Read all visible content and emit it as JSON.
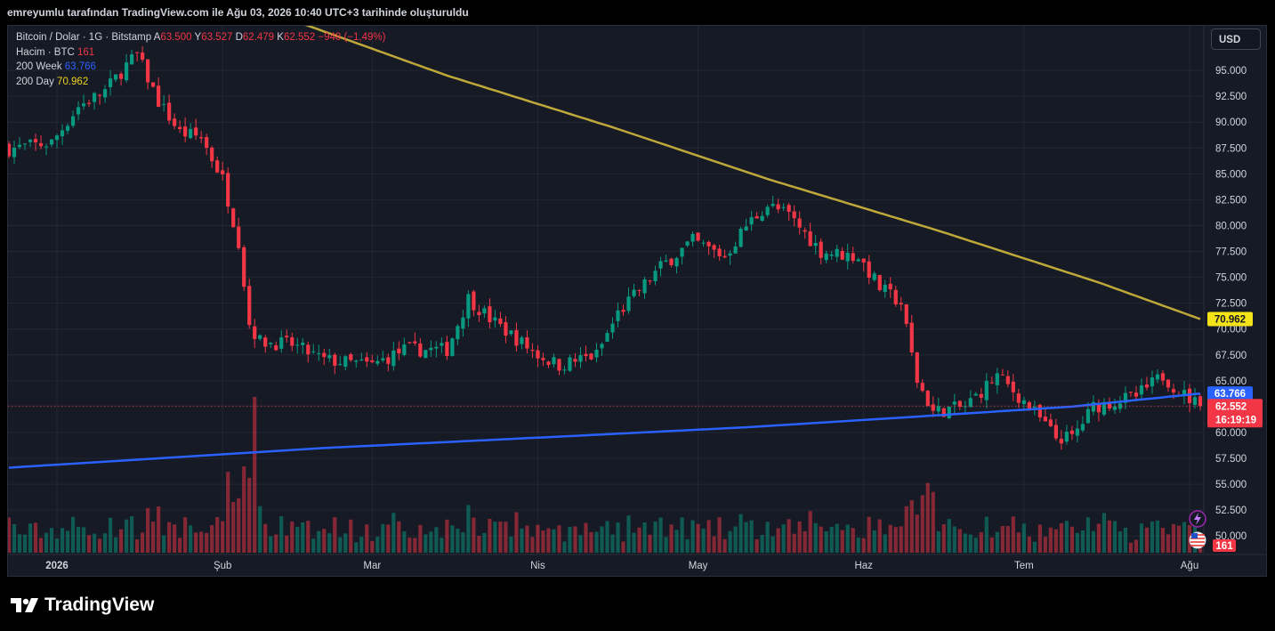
{
  "header": {
    "text": "emreyumlu tarafından TradingView.com ile Ağu 03, 2026 10:40 UTC+3 tarihinde oluşturuldu"
  },
  "legend": {
    "symbol": "Bitcoin / Dolar · 1G · Bitstamp",
    "o_label": "A",
    "o_value": "63.500",
    "h_label": "Y",
    "h_value": "63.527",
    "l_label": "D",
    "l_value": "62.479",
    "c_label": "K",
    "c_value": "62.552",
    "change": "−948 (−1,49%)",
    "volume_label": "Hacim · BTC",
    "volume_value": "161",
    "ma200w_label": "200 Week",
    "ma200w_value": "63.766",
    "ma200d_label": "200 Day",
    "ma200d_value": "70.962"
  },
  "currency_button": {
    "label": "USD"
  },
  "branding": {
    "logo_text": "TradingView"
  },
  "colors": {
    "up": "#089981",
    "down": "#f23645",
    "ma200w": "#2962ff",
    "ma200d": "#bfa83a",
    "background": "#161a25",
    "grid": "#232733"
  },
  "chart_data": {
    "type": "candlestick",
    "symbol": "Bitcoin / Dolar",
    "interval": "1G",
    "exchange": "Bitstamp",
    "x_tick_labels": [
      "2026",
      "Şub",
      "Mar",
      "Nis",
      "May",
      "Haz",
      "Tem",
      "Ağu"
    ],
    "y_tick_labels": [
      "95.000",
      "92.500",
      "90.000",
      "87.500",
      "85.000",
      "82.500",
      "80.000",
      "77.500",
      "75.000",
      "72.500",
      "70.000",
      "67.500",
      "65.000",
      "62.500",
      "60.000",
      "57.500",
      "55.000",
      "52.500",
      "50.000"
    ],
    "ylim": [
      49500,
      97500
    ],
    "price_markers": {
      "ma200d": "70.962",
      "ma200w": "63.766",
      "last": "62.552",
      "countdown": "16:19:19",
      "volume": "161"
    },
    "last_price": 62552,
    "dates_start": "2025-12-23",
    "dates_end": "2026-08-03",
    "series_daily_close_waypoints": [
      {
        "date": "2025-12-23",
        "price": 87400
      },
      {
        "date": "2025-12-31",
        "price": 88000
      },
      {
        "date": "2026-01-05",
        "price": 91500
      },
      {
        "date": "2026-01-10",
        "price": 93000
      },
      {
        "date": "2026-01-14",
        "price": 95500
      },
      {
        "date": "2026-01-16",
        "price": 96500
      },
      {
        "date": "2026-01-20",
        "price": 92000
      },
      {
        "date": "2026-01-24",
        "price": 89000
      },
      {
        "date": "2026-01-28",
        "price": 88500
      },
      {
        "date": "2026-02-01",
        "price": 84500
      },
      {
        "date": "2026-02-04",
        "price": 78500
      },
      {
        "date": "2026-02-06",
        "price": 70500
      },
      {
        "date": "2026-02-08",
        "price": 68800
      },
      {
        "date": "2026-02-14",
        "price": 68500
      },
      {
        "date": "2026-02-20",
        "price": 67000
      },
      {
        "date": "2026-03-01",
        "price": 66500
      },
      {
        "date": "2026-03-07",
        "price": 68000
      },
      {
        "date": "2026-03-15",
        "price": 68000
      },
      {
        "date": "2026-03-19",
        "price": 73000
      },
      {
        "date": "2026-03-23",
        "price": 71000
      },
      {
        "date": "2026-04-01",
        "price": 67500
      },
      {
        "date": "2026-04-05",
        "price": 66500
      },
      {
        "date": "2026-04-12",
        "price": 67500
      },
      {
        "date": "2026-04-16",
        "price": 71500
      },
      {
        "date": "2026-04-24",
        "price": 76000
      },
      {
        "date": "2026-04-30",
        "price": 78500
      },
      {
        "date": "2026-05-06",
        "price": 77000
      },
      {
        "date": "2026-05-10",
        "price": 80000
      },
      {
        "date": "2026-05-14",
        "price": 82000
      },
      {
        "date": "2026-05-18",
        "price": 81000
      },
      {
        "date": "2026-05-24",
        "price": 77500
      },
      {
        "date": "2026-05-31",
        "price": 77000
      },
      {
        "date": "2026-06-04",
        "price": 74000
      },
      {
        "date": "2026-06-08",
        "price": 72500
      },
      {
        "date": "2026-06-11",
        "price": 65000
      },
      {
        "date": "2026-06-14",
        "price": 62000
      },
      {
        "date": "2026-06-20",
        "price": 62500
      },
      {
        "date": "2026-06-26",
        "price": 65500
      },
      {
        "date": "2026-07-02",
        "price": 62500
      },
      {
        "date": "2026-07-07",
        "price": 59500
      },
      {
        "date": "2026-07-10",
        "price": 59500
      },
      {
        "date": "2026-07-14",
        "price": 62500
      },
      {
        "date": "2026-07-22",
        "price": 63500
      },
      {
        "date": "2026-07-27",
        "price": 65500
      },
      {
        "date": "2026-07-30",
        "price": 64000
      },
      {
        "date": "2026-08-03",
        "price": 62552
      }
    ],
    "ma200d_waypoints": [
      {
        "date": "2026-02-16",
        "price": 99500
      },
      {
        "date": "2026-03-15",
        "price": 94500
      },
      {
        "date": "2026-04-15",
        "price": 89500
      },
      {
        "date": "2026-05-14",
        "price": 84500
      },
      {
        "date": "2026-06-15",
        "price": 79500
      },
      {
        "date": "2026-07-15",
        "price": 74500
      },
      {
        "date": "2026-08-03",
        "price": 70962
      }
    ],
    "ma200w_waypoints": [
      {
        "date": "2025-12-23",
        "price": 56600
      },
      {
        "date": "2026-01-20",
        "price": 57500
      },
      {
        "date": "2026-02-20",
        "price": 58500
      },
      {
        "date": "2026-04-01",
        "price": 59500
      },
      {
        "date": "2026-05-10",
        "price": 60500
      },
      {
        "date": "2026-06-10",
        "price": 61500
      },
      {
        "date": "2026-07-10",
        "price": 62500
      },
      {
        "date": "2026-08-03",
        "price": 63766
      }
    ]
  }
}
